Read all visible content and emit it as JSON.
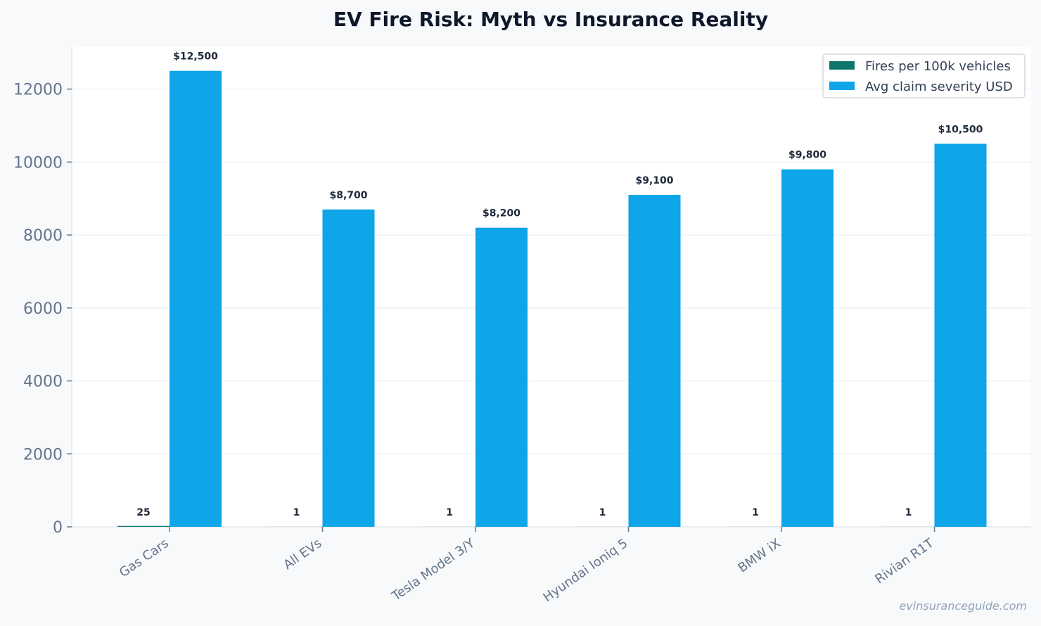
{
  "chart_data": {
    "type": "bar",
    "title": "EV Fire Risk: Myth vs Insurance Reality",
    "xlabel": "",
    "ylabel": "",
    "categories": [
      "Gas Cars",
      "All EVs",
      "Tesla Model 3/Y",
      "Hyundai Ioniq 5",
      "BMW iX",
      "Rivian R1T"
    ],
    "series": [
      {
        "name": "Fires per 100k vehicles",
        "values": [
          25,
          1,
          1,
          1,
          1,
          1
        ],
        "labels": [
          "25",
          "1",
          "1",
          "1",
          "1",
          "1"
        ],
        "color": "#0f766e"
      },
      {
        "name": "Avg claim severity USD",
        "values": [
          12500,
          8700,
          8200,
          9100,
          9800,
          10500
        ],
        "labels": [
          "$12,500",
          "$8,700",
          "$8,200",
          "$9,100",
          "$9,800",
          "$10,500"
        ],
        "color": "#0ea5e9"
      }
    ],
    "ylim": [
      0,
      13150
    ],
    "yticks": [
      0,
      2000,
      4000,
      6000,
      8000,
      10000,
      12000
    ],
    "grid": true,
    "legend_position": "top-right",
    "watermark": "evinsuranceguide.com"
  },
  "colors": {
    "background": "#f7f9fb",
    "plot_background": "#ffffff",
    "title": "#0f172a",
    "tick_label": "#64748b",
    "data_label": "#1e293b",
    "grid": "#eef2f6",
    "watermark": "#94a3b8"
  }
}
